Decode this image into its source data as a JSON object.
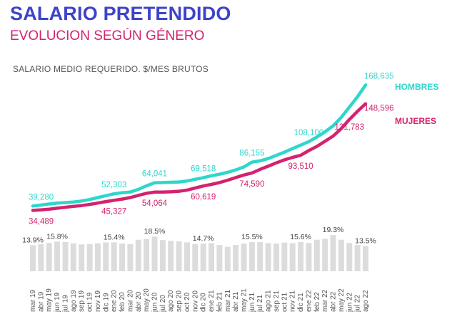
{
  "header": {
    "title": "SALARIO PRETENDIDO",
    "subtitle": "EVOLUCION SEGÚN GÉNERO",
    "note": "SALARIO MEDIO REQUERIDO. $/MES BRUTOS"
  },
  "colors": {
    "title": "#3d43c9",
    "subtitle": "#d4226e",
    "hombres": "#2ed6cc",
    "mujeres": "#d4226e",
    "bars": "#dcdcdc"
  },
  "chart_data": [
    {
      "type": "line",
      "categories": [
        "mar 19",
        "abr 19",
        "may 19",
        "jun 19",
        "jul 19",
        "ago 19",
        "sep 19",
        "oct 19",
        "nov 19",
        "dic 19",
        "ene 20",
        "feb 20",
        "mar 20",
        "abr 20",
        "may 20",
        "jun 20",
        "jul 20",
        "ago 20",
        "sep 20",
        "oct 20",
        "nov 20",
        "dic 20",
        "ene 21",
        "feb 21",
        "mar 21",
        "abr 21",
        "may 21",
        "jun 21",
        "jul 21",
        "ago 21",
        "sep 21",
        "oct 21",
        "nov 21",
        "dic 21",
        "ene 22",
        "feb 22",
        "mar 22",
        "abr 22",
        "may 22",
        "jun 22",
        "jul 22",
        "ago 22"
      ],
      "tick_labels": [
        "mar 19",
        "abr 19",
        "may 19",
        "jun 19",
        "jul 19",
        "ago 19",
        "sep 19",
        "oct 19",
        "nov 19",
        "dic 19",
        "ene 20",
        "feb 20",
        "mar 20",
        "abr 20",
        "may 20",
        "jun 20",
        "jul 20",
        "ago 20",
        "sep 20",
        "oct 20",
        "nov 20",
        "dic 20",
        "ene 21",
        "feb 21",
        "mar 21",
        "abr 21",
        "may 21",
        "jun 21",
        "jul 21",
        "ago 21",
        "sep 21",
        "oct 21",
        "nov 21",
        "dic 21",
        "ene 22",
        "feb 22",
        "mar 22",
        "abr 22",
        "may 22",
        "jun 22",
        "jul 22",
        "ago 22"
      ],
      "series": [
        {
          "name": "HOMBRES",
          "values": [
            39280,
            40200,
            41400,
            42300,
            42900,
            43500,
            44600,
            46200,
            48200,
            50300,
            52303,
            53400,
            54200,
            57000,
            60800,
            64041,
            64300,
            64600,
            64900,
            66000,
            67800,
            69518,
            71500,
            73200,
            75300,
            77800,
            81000,
            86155,
            87500,
            90000,
            93400,
            96800,
            100600,
            104400,
            108100,
            113000,
            118500,
            125000,
            134000,
            145000,
            156000,
            168635
          ]
        },
        {
          "name": "MUJERES",
          "values": [
            34489,
            35100,
            35800,
            36900,
            37900,
            38900,
            39700,
            40900,
            42400,
            44000,
            45327,
            46600,
            48200,
            50600,
            52800,
            54064,
            54100,
            54400,
            55000,
            56200,
            58400,
            60619,
            62300,
            64300,
            66800,
            69600,
            72400,
            74590,
            78400,
            81800,
            85400,
            88600,
            91200,
            93510,
            98500,
            103000,
            108500,
            114000,
            122000,
            131783,
            140500,
            148596
          ]
        }
      ],
      "data_labels": [
        {
          "series": "HOMBRES",
          "index": 0,
          "text": "39,280"
        },
        {
          "series": "HOMBRES",
          "index": 10,
          "text": "52,303"
        },
        {
          "series": "HOMBRES",
          "index": 15,
          "text": "64,041"
        },
        {
          "series": "HOMBRES",
          "index": 21,
          "text": "69,518"
        },
        {
          "series": "HOMBRES",
          "index": 27,
          "text": "86,155"
        },
        {
          "series": "HOMBRES",
          "index": 34,
          "text": "108,100"
        },
        {
          "series": "HOMBRES",
          "index": 41,
          "text": "168,635"
        },
        {
          "series": "MUJERES",
          "index": 0,
          "text": "34,489"
        },
        {
          "series": "MUJERES",
          "index": 10,
          "text": "45,327"
        },
        {
          "series": "MUJERES",
          "index": 15,
          "text": "54,064"
        },
        {
          "series": "MUJERES",
          "index": 21,
          "text": "60,619"
        },
        {
          "series": "MUJERES",
          "index": 27,
          "text": "74,590"
        },
        {
          "series": "MUJERES",
          "index": 33,
          "text": "93,510"
        },
        {
          "series": "MUJERES",
          "index": 39,
          "text": "131,783"
        },
        {
          "series": "MUJERES",
          "index": 41,
          "text": "148,596"
        }
      ],
      "legend": [
        "HOMBRES",
        "MUJERES"
      ],
      "legend_placement": "right",
      "ylabel": "SALARIO MEDIO REQUERIDO. $/MES BRUTOS",
      "ylim": [
        25000,
        172000
      ],
      "grid": false
    },
    {
      "type": "bar",
      "categories": [
        "mar 19",
        "abr 19",
        "may 19",
        "jun 19",
        "jul 19",
        "ago 19",
        "sep 19",
        "oct 19",
        "nov 19",
        "dic 19",
        "ene 20",
        "feb 20",
        "mar 20",
        "abr 20",
        "may 20",
        "jun 20",
        "jul 20",
        "ago 20",
        "sep 20",
        "oct 20",
        "nov 20",
        "dic 20",
        "ene 21",
        "feb 21",
        "mar 21",
        "abr 21",
        "may 21",
        "jun 21",
        "jul 21",
        "ago 21",
        "sep 21",
        "oct 21",
        "nov 21",
        "dic 21",
        "ene 22",
        "feb 22",
        "mar 22",
        "abr 22",
        "may 22",
        "jun 22",
        "jul 22",
        "ago 22"
      ],
      "values": [
        13.9,
        14.4,
        15.1,
        15.8,
        15.6,
        14.9,
        14.3,
        14.5,
        14.9,
        15.4,
        15.4,
        14.8,
        14.4,
        16.8,
        17.2,
        18.5,
        16.6,
        16.2,
        15.9,
        15.4,
        14.5,
        14.7,
        15.0,
        14.0,
        13.0,
        14.0,
        14.8,
        15.5,
        15.6,
        15.0,
        14.8,
        15.3,
        15.0,
        15.6,
        15.1,
        16.8,
        17.3,
        19.3,
        16.8,
        15.1,
        14.0,
        13.5
      ],
      "data_labels": [
        {
          "index": 0,
          "text": "13.9%"
        },
        {
          "index": 3,
          "text": "15.8%"
        },
        {
          "index": 10,
          "text": "15.4%"
        },
        {
          "index": 15,
          "text": "18.5%"
        },
        {
          "index": 21,
          "text": "14.7%"
        },
        {
          "index": 27,
          "text": "15.5%"
        },
        {
          "index": 33,
          "text": "15.6%"
        },
        {
          "index": 37,
          "text": "19.3%"
        },
        {
          "index": 41,
          "text": "13.5%"
        }
      ],
      "ylim": [
        0,
        22
      ],
      "grid": false
    }
  ]
}
